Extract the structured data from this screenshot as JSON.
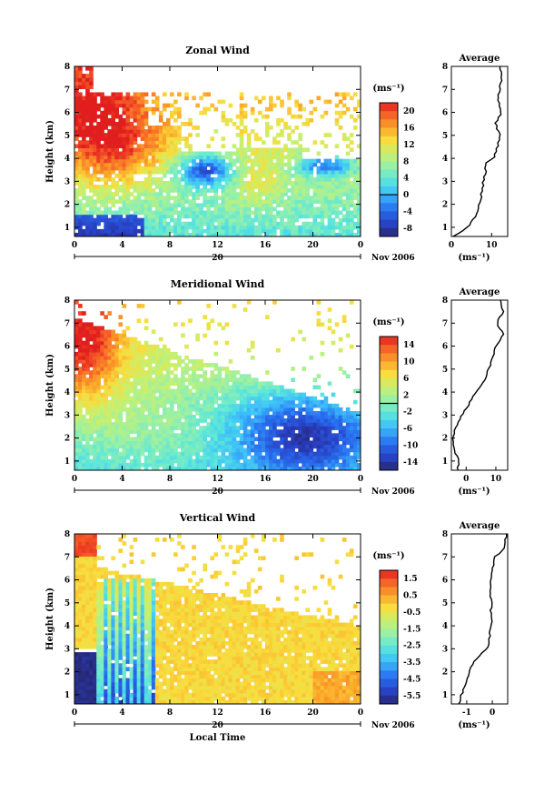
{
  "chart_data": [
    {
      "type": "heatmap",
      "title": "Zonal Wind",
      "ylabel": "Height (km)",
      "x_ticks": [
        "0",
        "4",
        "8",
        "12",
        "16",
        "20",
        "0"
      ],
      "y_ticks": [
        "1",
        "2",
        "3",
        "4",
        "5",
        "6",
        "7",
        "8"
      ],
      "xlim": [
        0,
        24
      ],
      "ylim": [
        0.6,
        8
      ],
      "date_label": "20",
      "month_label": "Nov 2006",
      "colorbar": {
        "label": "(ms⁻¹)",
        "ticks": [
          "20",
          "16",
          "12",
          "8",
          "4",
          "0",
          "-4",
          "-8"
        ],
        "range": [
          -10,
          22
        ],
        "zero_line": 0
      },
      "field_summary": {
        "low_layer": "negative (-4 to -10) below ~1.5 km from 0-6 LT",
        "mid_high": "strong westerly 16-22 above 4 km, 0-7 LT",
        "negative_patches": "-4 to -8 at 3-4 km from 9-14 LT and 19-23 LT"
      },
      "average_profile": {
        "title": "Average",
        "xlabel": "(ms⁻¹)",
        "x_ticks": [
          "0",
          "10"
        ],
        "xlim": [
          0,
          14
        ],
        "heights": [
          0.6,
          1.0,
          1.5,
          2.0,
          2.5,
          3.0,
          3.5,
          3.8,
          4.0,
          4.5,
          5.0,
          5.5,
          6.0,
          6.5,
          7.0,
          7.5,
          8.0
        ],
        "values": [
          0.5,
          4.0,
          6.0,
          7.0,
          7.5,
          8.0,
          8.5,
          8.5,
          10.5,
          11.5,
          12.0,
          11.0,
          12.5,
          11.5,
          12.0,
          12.5,
          12.0
        ]
      }
    },
    {
      "type": "heatmap",
      "title": "Meridional Wind",
      "ylabel": "Height (km)",
      "x_ticks": [
        "0",
        "4",
        "8",
        "12",
        "16",
        "20",
        "0"
      ],
      "y_ticks": [
        "1",
        "2",
        "3",
        "4",
        "5",
        "6",
        "7",
        "8"
      ],
      "xlim": [
        0,
        24
      ],
      "ylim": [
        0.6,
        8
      ],
      "date_label": "20",
      "month_label": "Nov 2006",
      "colorbar": {
        "label": "(ms⁻¹)",
        "ticks": [
          "14",
          "10",
          "6",
          "2",
          "-2",
          "-6",
          "-10",
          "-14"
        ],
        "range": [
          -16,
          16
        ],
        "zero_line": 0
      },
      "field_summary": {
        "early_high": "strong positive 12-16 above 4 km from 0-2 LT",
        "mid_layer": "near zero to slightly negative 1-4 km through 0-14 LT",
        "late_low": "strong negative -8 to -14 at 1-3 km from 14-24 LT"
      },
      "average_profile": {
        "title": "Average",
        "xlabel": "(ms⁻¹)",
        "x_ticks": [
          "0",
          "10"
        ],
        "xlim": [
          -5,
          14
        ],
        "heights": [
          0.6,
          1.0,
          1.5,
          2.0,
          2.5,
          3.0,
          3.5,
          4.0,
          4.5,
          5.0,
          5.5,
          6.0,
          6.5,
          7.0,
          7.5,
          8.0
        ],
        "values": [
          -3.0,
          -2.5,
          -4.0,
          -4.5,
          -3.5,
          -1.5,
          1.0,
          3.5,
          6.0,
          7.5,
          9.0,
          10.0,
          12.5,
          10.5,
          12.5,
          11.5
        ]
      }
    },
    {
      "type": "heatmap",
      "title": "Vertical Wind",
      "xlabel": "Local Time",
      "ylabel": "Height (km)",
      "x_ticks": [
        "0",
        "4",
        "8",
        "12",
        "16",
        "20",
        "0"
      ],
      "y_ticks": [
        "1",
        "2",
        "3",
        "4",
        "5",
        "6",
        "7",
        "8"
      ],
      "xlim": [
        0,
        24
      ],
      "ylim": [
        0.6,
        8
      ],
      "date_label": "20",
      "month_label": "Nov 2006",
      "colorbar": {
        "label": "(ms⁻¹)",
        "ticks": [
          "1.5",
          "0.5",
          "-0.5",
          "-1.5",
          "-2.5",
          "-3.5",
          "-4.5",
          "-5.5"
        ],
        "range": [
          -6.0,
          2.0
        ]
      },
      "field_summary": {
        "downdraft": "-5.5 to -6 below 2.8 km from 0-2 LT",
        "streaks": "-2 to -5 vertical streaks 2-6 LT",
        "background": "-0.5 to 0.5 over most of the domain"
      },
      "average_profile": {
        "title": "Average",
        "xlabel": "(ms⁻¹)",
        "x_ticks": [
          "-1",
          "0"
        ],
        "xlim": [
          -1.6,
          0.6
        ],
        "heights": [
          0.6,
          1.0,
          1.5,
          2.0,
          2.5,
          2.8,
          3.0,
          3.5,
          4.0,
          5.0,
          6.0,
          6.5,
          7.0,
          7.2,
          7.5,
          8.0
        ],
        "values": [
          -1.3,
          -1.2,
          -1.0,
          -0.9,
          -0.7,
          -0.4,
          -0.2,
          -0.1,
          -0.05,
          -0.05,
          -0.05,
          0.0,
          0.1,
          0.4,
          0.45,
          0.55
        ]
      }
    }
  ]
}
